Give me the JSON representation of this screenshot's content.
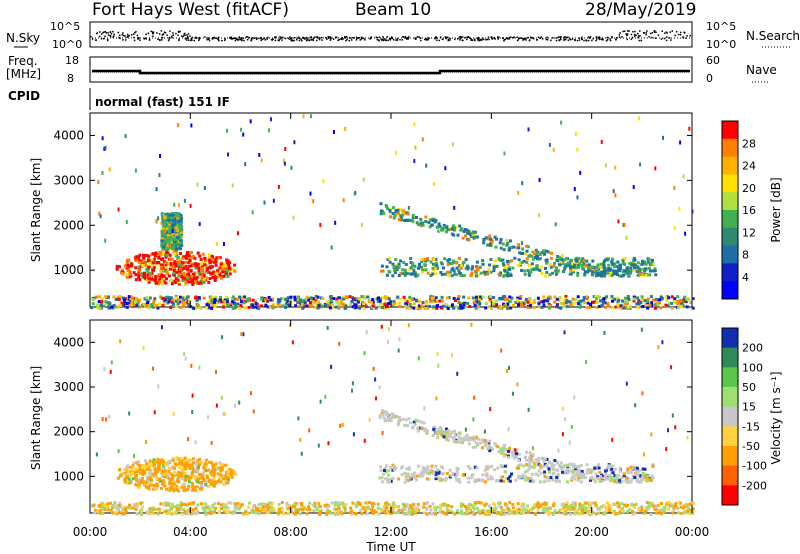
{
  "header": {
    "station": "Fort Hays West (fitACF)",
    "beam": "Beam 10",
    "date": "28/May/2019"
  },
  "strip_panels": {
    "nsky_label": "N.Sky",
    "nsky_ticks": [
      "10^5",
      "10^0"
    ],
    "nsearch_label": "N.Search",
    "nsearch_ticks": [
      "10^5",
      "10^0"
    ],
    "freq_label_line1": "Freq.",
    "freq_label_line2": "[MHz]",
    "freq_ticks": [
      "18",
      "8"
    ],
    "nave_label": "Nave",
    "nave_ticks": [
      "60",
      "0"
    ],
    "cpid_label": "CPID",
    "cpid_text": "normal (fast) 151 IF"
  },
  "chart_data": [
    {
      "type": "heatmap",
      "name": "power-panel",
      "ylabel": "Slant Range [km]",
      "yticks": [
        1000,
        2000,
        3000,
        4000
      ],
      "ylim": [
        180,
        4500
      ],
      "xlim": [
        0,
        24
      ],
      "xticks": [
        "00:00",
        "04:00",
        "08:00",
        "12:00",
        "16:00",
        "20:00",
        "00:00"
      ],
      "colorbar": {
        "label": "Power [dB]",
        "ticks": [
          "28",
          "24",
          "20",
          "16",
          "12",
          "8",
          "4"
        ],
        "colors": [
          "#ff0000",
          "#ff7f00",
          "#ffb000",
          "#ffe000",
          "#b0e040",
          "#40b050",
          "#2e8b70",
          "#1d6fa8",
          "#1020c8",
          "#0000ff"
        ]
      },
      "regions": [
        {
          "t0": 1.0,
          "t1": 5.8,
          "r0": 700,
          "r1": 1450,
          "level": "high"
        },
        {
          "t0": 2.8,
          "t1": 3.6,
          "r0": 1500,
          "r1": 2300,
          "level": "mid"
        },
        {
          "t0": 11.5,
          "t1": 22.5,
          "r0": 600,
          "r1": 2500,
          "level": "low"
        },
        {
          "t0": 0.0,
          "t1": 24.0,
          "r0": 180,
          "r1": 450,
          "level": "mixed"
        }
      ]
    },
    {
      "type": "heatmap",
      "name": "velocity-panel",
      "ylabel": "Slant Range [km]",
      "yticks": [
        1000,
        2000,
        3000,
        4000
      ],
      "ylim": [
        180,
        4500
      ],
      "xlim": [
        0,
        24
      ],
      "xticks": [
        "00:00",
        "04:00",
        "08:00",
        "12:00",
        "16:00",
        "20:00",
        "00:00"
      ],
      "xlabel": "Time UT",
      "colorbar": {
        "label": "Velocity [m s⁻¹]",
        "ticks": [
          "200",
          "100",
          "50",
          "15",
          "-15",
          "-50",
          "-100",
          "-200"
        ],
        "colors": [
          "#1030b0",
          "#2e8b57",
          "#5ac84a",
          "#9ee070",
          "#c8c8c8",
          "#ffd040",
          "#ffa000",
          "#ff6000",
          "#ff0000"
        ]
      },
      "regions": [
        {
          "t0": 1.0,
          "t1": 5.8,
          "r0": 700,
          "r1": 1450,
          "level": "neg"
        },
        {
          "t0": 11.5,
          "t1": 22.5,
          "r0": 600,
          "r1": 2500,
          "level": "gs"
        },
        {
          "t0": 0.0,
          "t1": 24.0,
          "r0": 180,
          "r1": 450,
          "level": "mixed"
        }
      ]
    }
  ]
}
